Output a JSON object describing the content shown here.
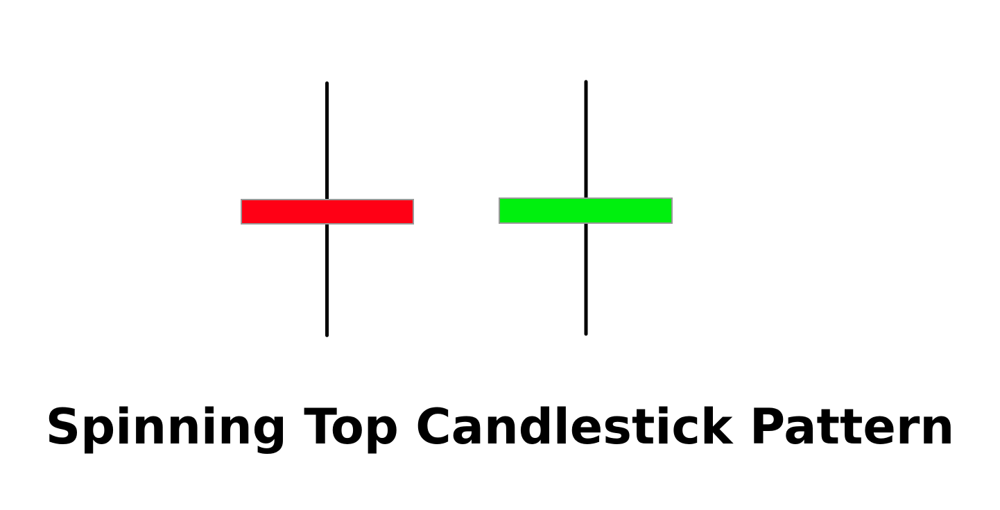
{
  "colors": {
    "background": "#ffffff",
    "wick": "#000000",
    "bearish_body": "#ff0015",
    "bullish_body": "#00f00e",
    "body_outline": "#999999"
  },
  "candles": [
    {
      "name": "bearish-candle",
      "color": "bearish"
    },
    {
      "name": "bullish-candle",
      "color": "bullish"
    }
  ],
  "caption": "Spinning Top Candlestick Pattern"
}
